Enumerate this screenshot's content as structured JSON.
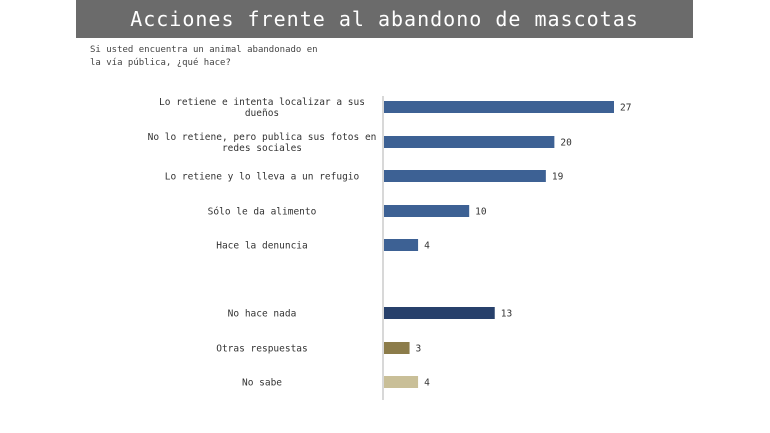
{
  "title": "Acciones frente al abandono de mascotas",
  "question": "Si usted encuentra un animal abandonado en la vía pública, ¿qué hace?",
  "chart_data": {
    "type": "bar",
    "orientation": "horizontal",
    "categories": [
      [
        "Lo retiene e intenta localizar a sus",
        "dueños"
      ],
      [
        "No lo retiene, pero publica sus fotos en",
        "redes sociales"
      ],
      [
        "Lo retiene y lo lleva a un refugio"
      ],
      [
        "Sólo le da alimento"
      ],
      [
        "Hace la denuncia"
      ],
      [
        "No hace nada"
      ],
      [
        "Otras respuestas"
      ],
      [
        "No sabe"
      ]
    ],
    "values": [
      27,
      20,
      19,
      10,
      4,
      13,
      3,
      4
    ],
    "colors": [
      "#3d6194",
      "#3d6194",
      "#3d6194",
      "#3d6194",
      "#3d6194",
      "#27406b",
      "#8c7c4a",
      "#c9bf98"
    ],
    "grid": false
  }
}
